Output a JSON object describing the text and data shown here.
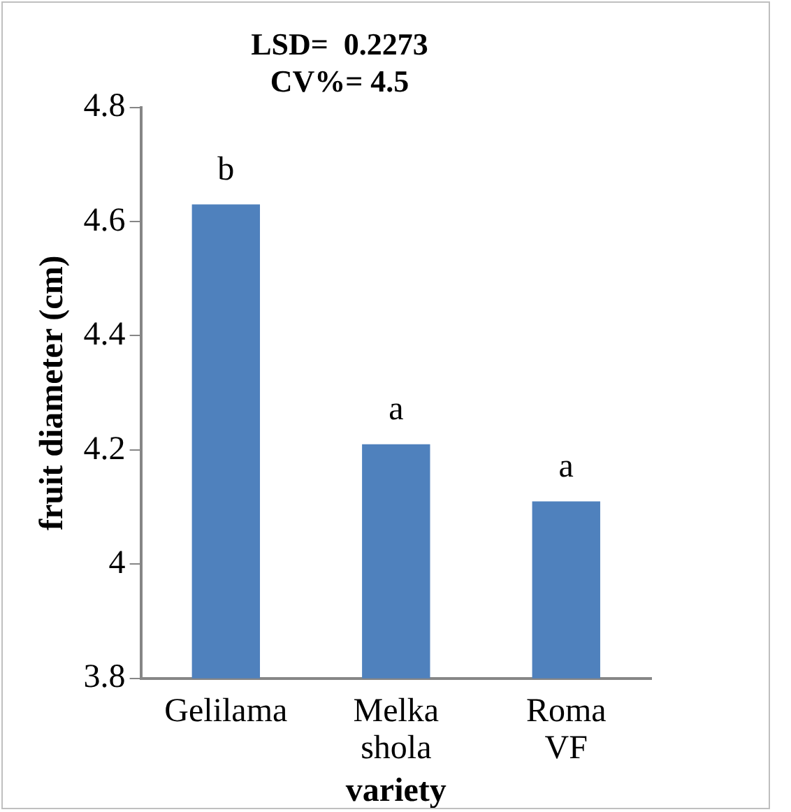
{
  "chart_data": {
    "type": "bar",
    "title": "LSD=  0.2273",
    "subtitle": "CV%= 4.5",
    "xlabel": "variety",
    "ylabel": "fruit diameter (cm)",
    "categories": [
      "Gelilama",
      "Melka shola",
      "Roma VF"
    ],
    "values": [
      4.63,
      4.21,
      4.11
    ],
    "color": "#4f81bd",
    "ylim": [
      3.8,
      4.8
    ],
    "yticks": [
      3.8,
      4,
      4.2,
      4.4,
      4.6,
      4.8
    ],
    "grid": false,
    "legend": false,
    "annotations": [
      {
        "text": "b",
        "x": "Gelilama",
        "y": 4.63
      },
      {
        "text": "a",
        "x": "Melka shola",
        "y": 4.21
      },
      {
        "text": "a",
        "x": "Roma VF",
        "y": 4.11
      }
    ]
  }
}
